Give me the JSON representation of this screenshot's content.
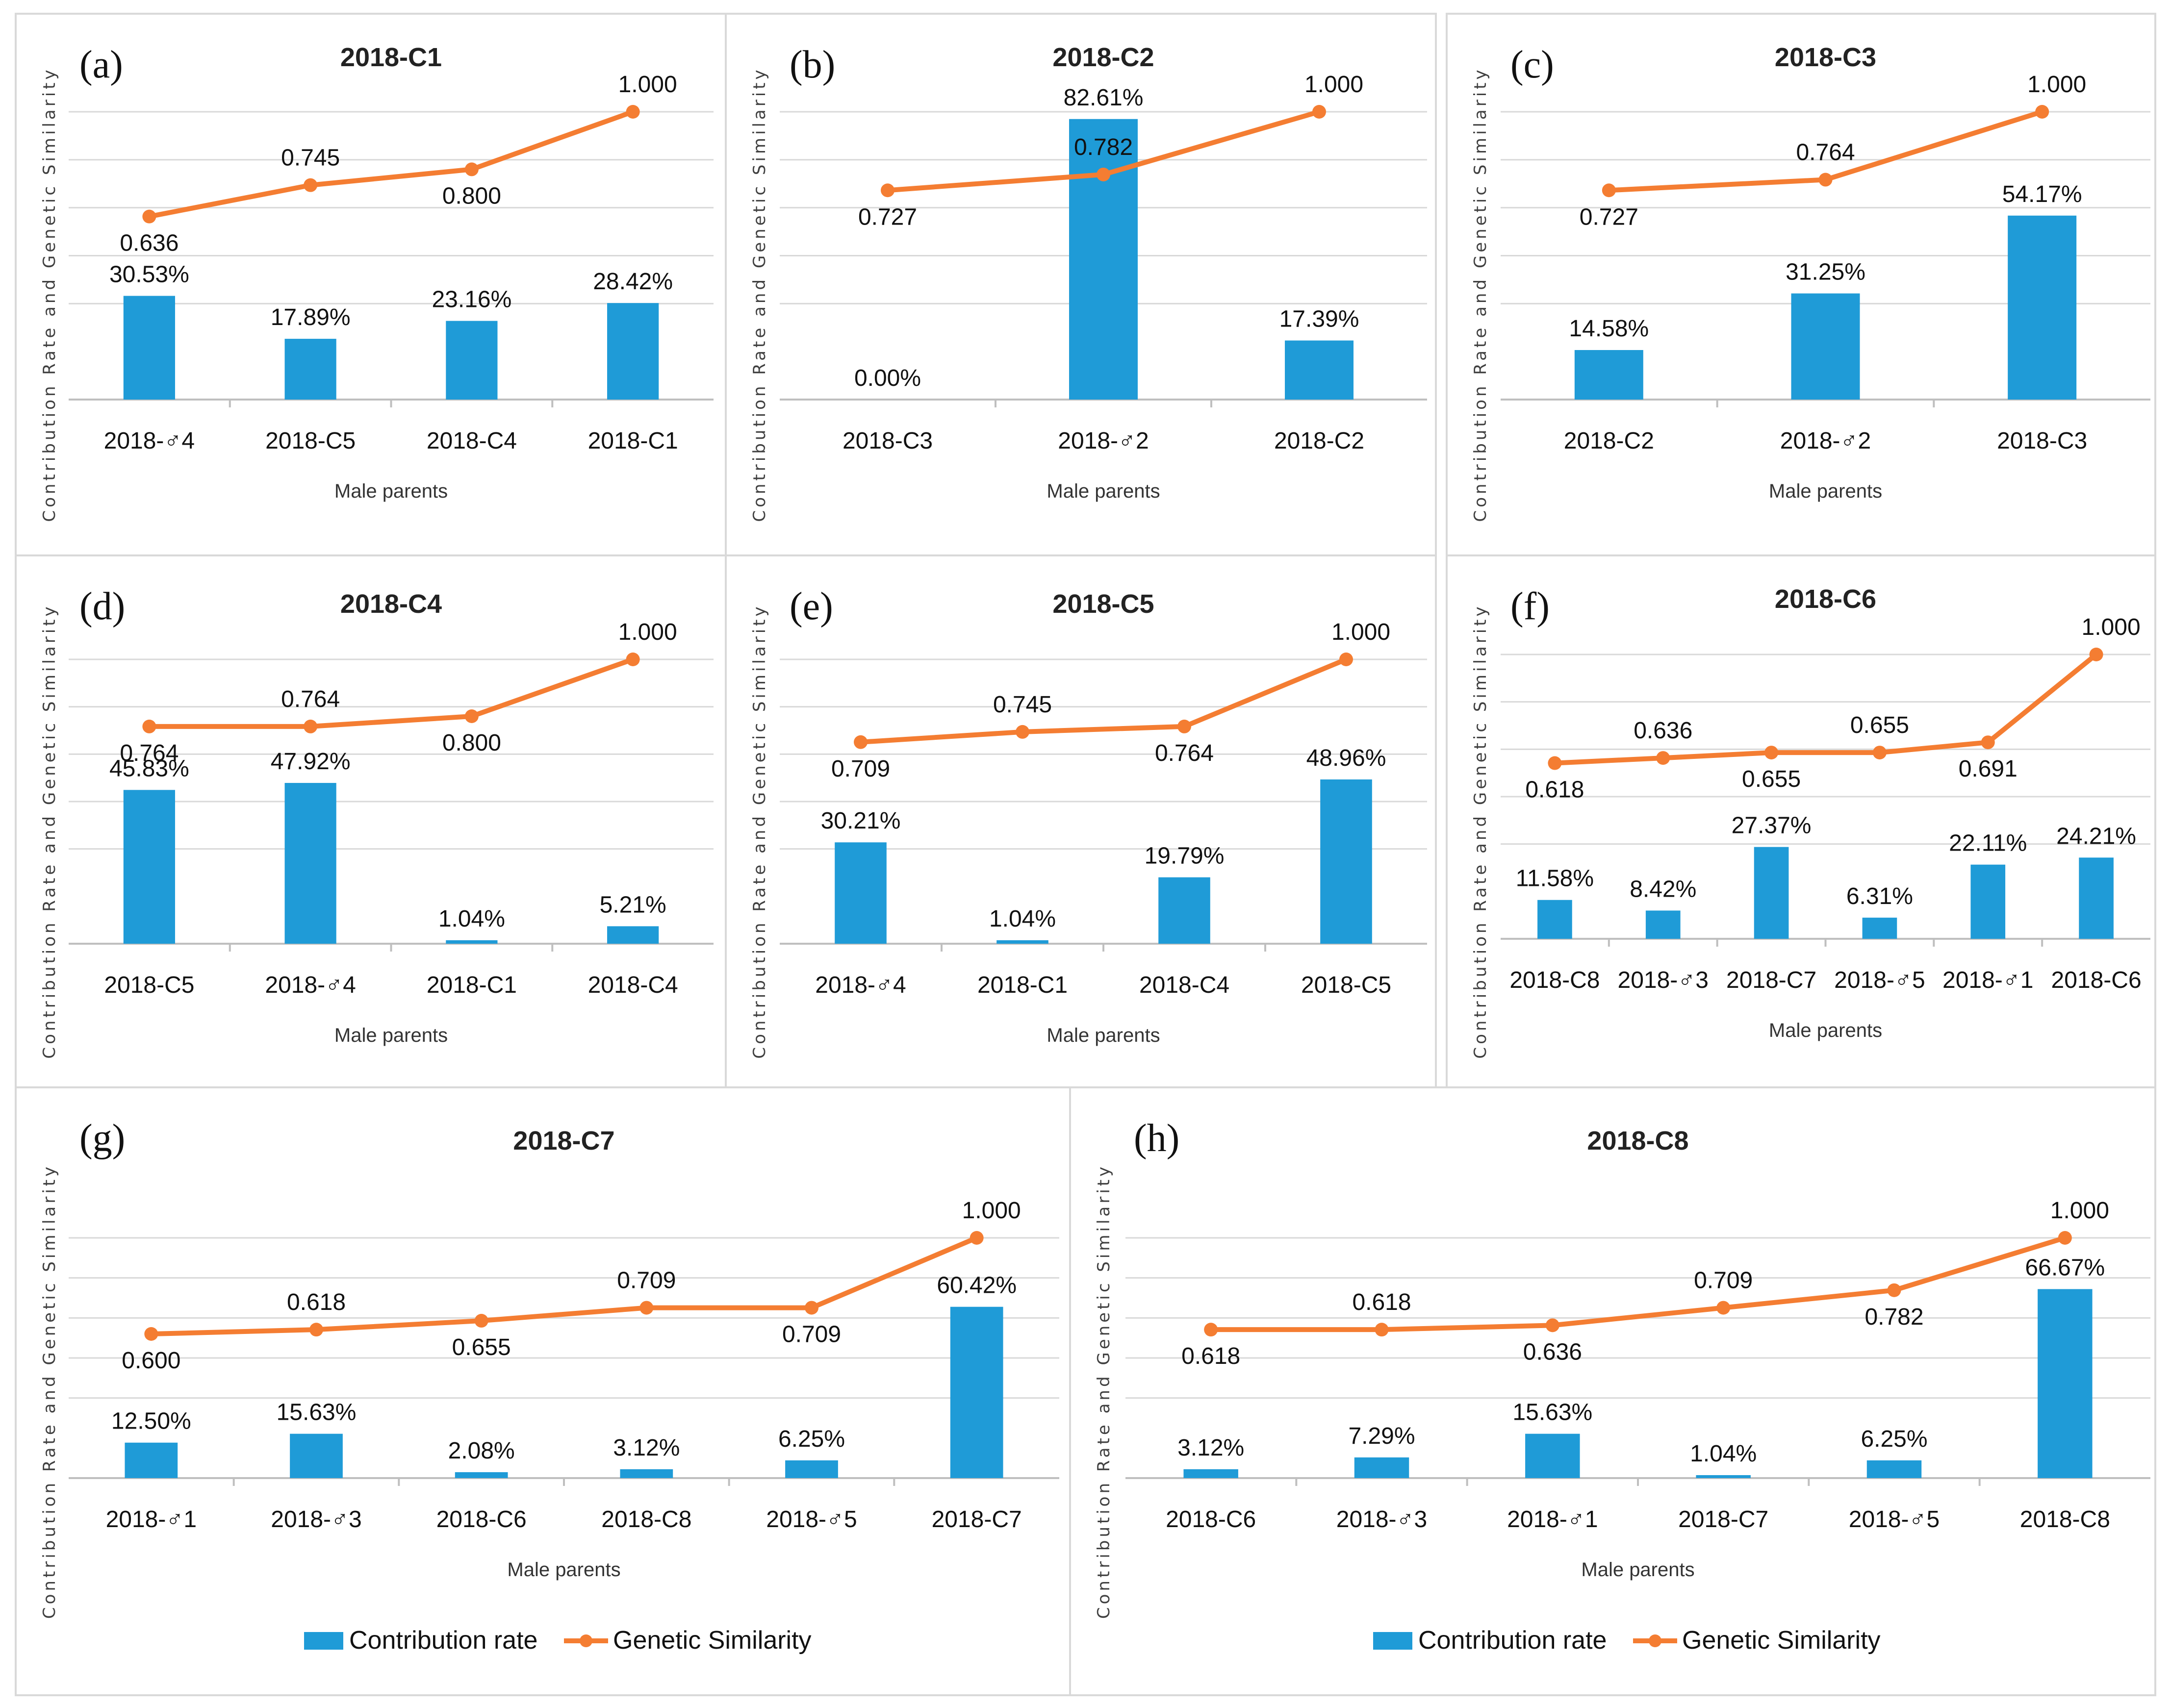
{
  "colors": {
    "bar": "#1f9bd7",
    "line": "#f47d32"
  },
  "common": {
    "xlabel": "Male parents",
    "ylabel": "Contribution Rate and Genetic Similarity"
  },
  "legend": {
    "bar": "Contribution rate",
    "line": "Genetic Similarity"
  },
  "chart_data": [
    {
      "panel": "(a)",
      "type": "bar+line",
      "title": "2018-C1",
      "categories": [
        "2018-♂︎4",
        "2018-C5",
        "2018-C4",
        "2018-C1"
      ],
      "series": [
        {
          "name": "Contribution rate",
          "values": [
            30.53,
            17.89,
            23.16,
            28.42
          ],
          "labels": [
            "30.53%",
            "17.89%",
            "23.16%",
            "28.42%"
          ]
        },
        {
          "name": "Genetic Similarity",
          "values": [
            0.636,
            0.745,
            0.8,
            1.0
          ],
          "labels": [
            "0.636",
            "0.745",
            "0.800",
            "1.000"
          ]
        }
      ]
    },
    {
      "panel": "(b)",
      "type": "bar+line",
      "title": "2018-C2",
      "categories": [
        "2018-C3",
        "2018-♂︎2",
        "2018-C2"
      ],
      "series": [
        {
          "name": "Contribution rate",
          "values": [
            0.0,
            82.61,
            17.39
          ],
          "labels": [
            "0.00%",
            "82.61%",
            "17.39%"
          ]
        },
        {
          "name": "Genetic Similarity",
          "values": [
            0.727,
            0.782,
            1.0
          ],
          "labels": [
            "0.727",
            "0.782",
            "1.000"
          ]
        }
      ]
    },
    {
      "panel": "(c)",
      "type": "bar+line",
      "title": "2018-C3",
      "categories": [
        "2018-C2",
        "2018-♂︎2",
        "2018-C3"
      ],
      "series": [
        {
          "name": "Contribution rate",
          "values": [
            14.58,
            31.25,
            54.17
          ],
          "labels": [
            "14.58%",
            "31.25%",
            "54.17%"
          ]
        },
        {
          "name": "Genetic Similarity",
          "values": [
            0.727,
            0.764,
            1.0
          ],
          "labels": [
            "0.727",
            "0.764",
            "1.000"
          ]
        }
      ]
    },
    {
      "panel": "(d)",
      "type": "bar+line",
      "title": "2018-C4",
      "categories": [
        "2018-C5",
        "2018-♂︎4",
        "2018-C1",
        "2018-C4"
      ],
      "series": [
        {
          "name": "Contribution rate",
          "values": [
            45.83,
            47.92,
            1.04,
            5.21
          ],
          "labels": [
            "45.83%",
            "47.92%",
            "1.04%",
            "5.21%"
          ]
        },
        {
          "name": "Genetic Similarity",
          "values": [
            0.764,
            0.764,
            0.8,
            1.0
          ],
          "labels": [
            "0.764",
            "0.764",
            "0.800",
            "1.000"
          ]
        }
      ]
    },
    {
      "panel": "(e)",
      "type": "bar+line",
      "title": "2018-C5",
      "categories": [
        "2018-♂︎4",
        "2018-C1",
        "2018-C4",
        "2018-C5"
      ],
      "series": [
        {
          "name": "Contribution rate",
          "values": [
            30.21,
            1.04,
            19.79,
            48.96
          ],
          "labels": [
            "30.21%",
            "1.04%",
            "19.79%",
            "48.96%"
          ]
        },
        {
          "name": "Genetic Similarity",
          "values": [
            0.709,
            0.745,
            0.764,
            1.0
          ],
          "labels": [
            "0.709",
            "0.745",
            "0.764",
            "1.000"
          ]
        }
      ]
    },
    {
      "panel": "(f)",
      "type": "bar+line",
      "title": "2018-C6",
      "categories": [
        "2018-C8",
        "2018-♂︎3",
        "2018-C7",
        "2018-♂︎5",
        "2018-♂︎1",
        "2018-C6"
      ],
      "series": [
        {
          "name": "Contribution rate",
          "values": [
            11.58,
            8.42,
            27.37,
            6.31,
            22.11,
            24.21
          ],
          "labels": [
            "11.58%",
            "8.42%",
            "27.37%",
            "6.31%",
            "22.11%",
            "24.21%"
          ]
        },
        {
          "name": "Genetic Similarity",
          "values": [
            0.618,
            0.636,
            0.655,
            0.655,
            0.691,
            1.0
          ],
          "labels": [
            "0.618",
            "0.636",
            "0.655",
            "0.655",
            "0.691",
            "1.000"
          ]
        }
      ]
    },
    {
      "panel": "(g)",
      "type": "bar+line",
      "title": "2018-C7",
      "categories": [
        "2018-♂︎1",
        "2018-♂︎3",
        "2018-C6",
        "2018-C8",
        "2018-♂︎5",
        "2018-C7"
      ],
      "series": [
        {
          "name": "Contribution rate",
          "values": [
            12.5,
            15.63,
            2.08,
            3.12,
            6.25,
            60.42
          ],
          "labels": [
            "12.50%",
            "15.63%",
            "2.08%",
            "3.12%",
            "6.25%",
            "60.42%"
          ]
        },
        {
          "name": "Genetic Similarity",
          "values": [
            0.6,
            0.618,
            0.655,
            0.709,
            0.709,
            1.0
          ],
          "labels": [
            "0.600",
            "0.618",
            "0.655",
            "0.709",
            "0.709",
            "1.000"
          ]
        }
      ]
    },
    {
      "panel": "(h)",
      "type": "bar+line",
      "title": "2018-C8",
      "categories": [
        "2018-C6",
        "2018-♂︎3",
        "2018-♂︎1",
        "2018-C7",
        "2018-♂︎5",
        "2018-C8"
      ],
      "series": [
        {
          "name": "Contribution rate",
          "values": [
            3.12,
            7.29,
            15.63,
            1.04,
            6.25,
            66.67
          ],
          "labels": [
            "3.12%",
            "7.29%",
            "15.63%",
            "1.04%",
            "6.25%",
            "66.67%"
          ]
        },
        {
          "name": "Genetic Similarity",
          "values": [
            0.618,
            0.618,
            0.636,
            0.709,
            0.782,
            1.0
          ],
          "labels": [
            "0.618",
            "0.618",
            "0.636",
            "0.709",
            "0.782",
            "1.000"
          ]
        }
      ]
    }
  ]
}
